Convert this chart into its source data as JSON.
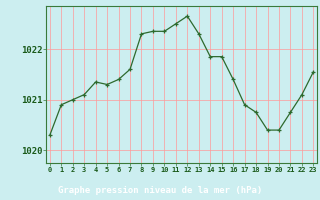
{
  "hours": [
    0,
    1,
    2,
    3,
    4,
    5,
    6,
    7,
    8,
    9,
    10,
    11,
    12,
    13,
    14,
    15,
    16,
    17,
    18,
    19,
    20,
    21,
    22,
    23
  ],
  "pressure": [
    1020.3,
    1020.9,
    1021.0,
    1021.1,
    1021.35,
    1021.3,
    1021.4,
    1021.6,
    1022.3,
    1022.35,
    1022.35,
    1022.5,
    1022.65,
    1022.3,
    1021.85,
    1021.85,
    1021.4,
    1020.9,
    1020.75,
    1020.4,
    1020.4,
    1020.75,
    1021.1,
    1021.55
  ],
  "ylim": [
    1019.75,
    1022.85
  ],
  "yticks": [
    1020,
    1021,
    1022
  ],
  "xlabel": "Graphe pression niveau de la mer (hPa)",
  "line_color": "#2d6a2d",
  "marker": "+",
  "bg_color": "#cceef0",
  "grid_color": "#ff9999",
  "axis_color": "#3a7a3a",
  "label_color": "#1a4a1a",
  "tick_label_color": "#1a5a1a",
  "bottom_bar_color": "#2a5a2a",
  "bottom_bar_bg": "#3a7a3a"
}
